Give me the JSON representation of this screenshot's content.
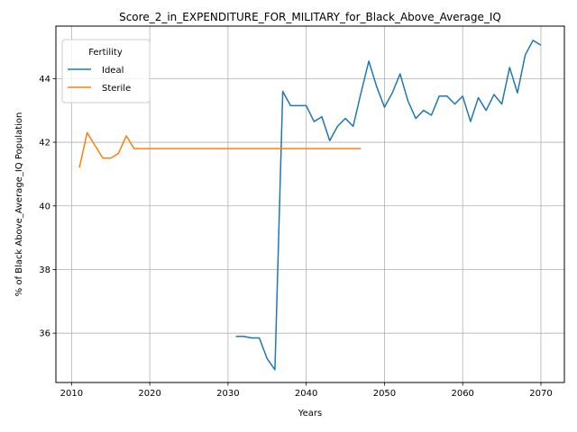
{
  "chart_data": {
    "type": "line",
    "title": "Score_2_in_EXPENDITURE_FOR_MILITARY_for_Black_Above_Average_IQ",
    "xlabel": "Years",
    "ylabel": "% of Black Above_Average_IQ Population",
    "xlim": [
      2008,
      2073
    ],
    "ylim": [
      34.45,
      45.65
    ],
    "xticks": [
      2010,
      2020,
      2030,
      2040,
      2050,
      2060,
      2070
    ],
    "yticks": [
      36,
      38,
      40,
      42,
      44
    ],
    "grid": true,
    "legend": {
      "title": "Fertility",
      "placement": "top-left"
    },
    "series": [
      {
        "name": "Ideal",
        "color": "#1f77b4",
        "x": [
          2031,
          2032,
          2033,
          2034,
          2035,
          2036,
          2037,
          2038,
          2039,
          2040,
          2041,
          2042,
          2043,
          2044,
          2045,
          2046,
          2047,
          2048,
          2049,
          2050,
          2051,
          2052,
          2053,
          2054,
          2055,
          2056,
          2057,
          2058,
          2059,
          2060,
          2061,
          2062,
          2063,
          2064,
          2065,
          2066,
          2067,
          2068,
          2069,
          2070
        ],
        "y": [
          35.9,
          35.9,
          35.85,
          35.85,
          35.2,
          34.85,
          43.6,
          43.15,
          43.15,
          43.15,
          42.65,
          42.8,
          42.05,
          42.5,
          42.75,
          42.5,
          43.55,
          44.55,
          43.75,
          43.1,
          43.55,
          44.15,
          43.3,
          42.75,
          43.0,
          42.85,
          43.45,
          43.45,
          43.2,
          43.45,
          42.65,
          43.4,
          43.0,
          43.5,
          43.2,
          44.35,
          43.55,
          44.75,
          45.2,
          45.05
        ]
      },
      {
        "name": "Sterile",
        "color": "#ff7f0e",
        "x": [
          2011,
          2012,
          2013,
          2014,
          2015,
          2016,
          2017,
          2018,
          2019,
          2020,
          2021,
          2022,
          2023,
          2024,
          2025,
          2026,
          2027,
          2028,
          2029,
          2030,
          2031,
          2032,
          2033,
          2034,
          2035,
          2036,
          2037,
          2038,
          2039,
          2040,
          2041,
          2042,
          2043,
          2044,
          2045,
          2046,
          2047
        ],
        "y": [
          41.2,
          42.3,
          41.9,
          41.5,
          41.5,
          41.65,
          42.2,
          41.8,
          41.8,
          41.8,
          41.8,
          41.8,
          41.8,
          41.8,
          41.8,
          41.8,
          41.8,
          41.8,
          41.8,
          41.8,
          41.8,
          41.8,
          41.8,
          41.8,
          41.8,
          41.8,
          41.8,
          41.8,
          41.8,
          41.8,
          41.8,
          41.8,
          41.8,
          41.8,
          41.8,
          41.8,
          41.8
        ]
      }
    ]
  }
}
